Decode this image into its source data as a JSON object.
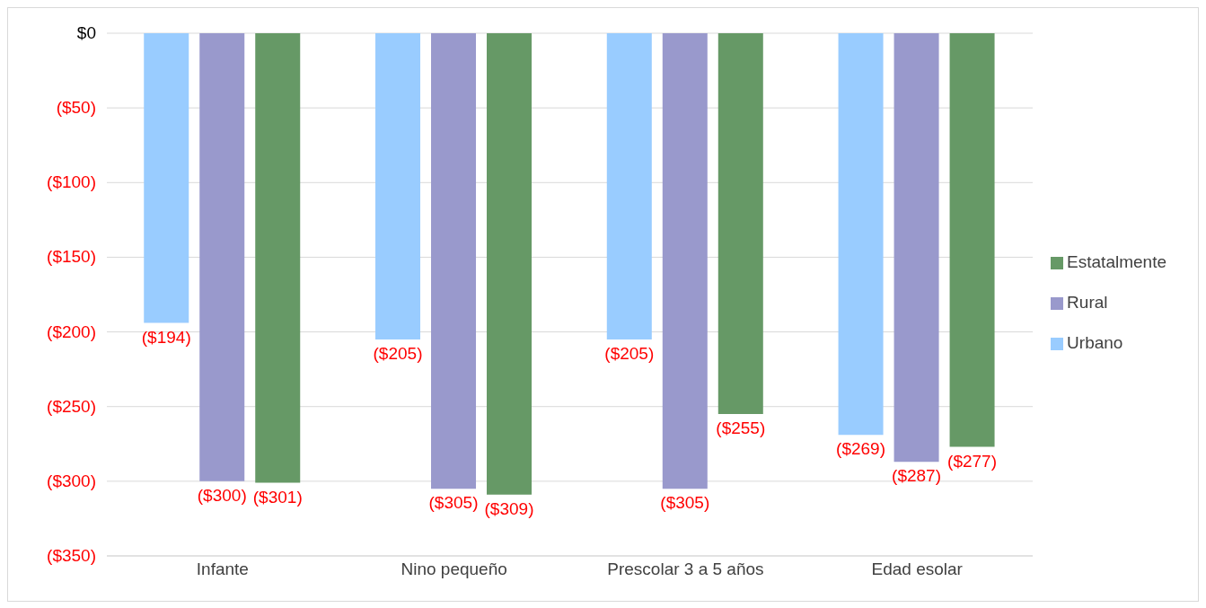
{
  "chart_data": {
    "type": "bar",
    "categories": [
      "Infante",
      "Nino pequeño",
      "Prescolar 3 a 5 años",
      "Edad esolar"
    ],
    "series": [
      {
        "name": "Urbano",
        "color": "#99ccff",
        "values": [
          -194,
          -205,
          -205,
          -269
        ],
        "value_labels": [
          "($194)",
          "($205)",
          "($205)",
          "($269)"
        ]
      },
      {
        "name": "Rural",
        "color": "#9999cc",
        "values": [
          -300,
          -305,
          -305,
          -287
        ],
        "value_labels": [
          "($300)",
          "($305)",
          "($305)",
          "($287)"
        ]
      },
      {
        "name": "Estatalmente",
        "color": "#669966",
        "values": [
          -301,
          -309,
          -255,
          -277
        ],
        "value_labels": [
          "($301)",
          "($309)",
          "($255)",
          "($277)"
        ]
      }
    ],
    "ylim": [
      -350,
      0
    ],
    "yticks": [
      {
        "value": 0,
        "label": "$0"
      },
      {
        "value": -50,
        "label": "($50)"
      },
      {
        "value": -100,
        "label": "($100)"
      },
      {
        "value": -150,
        "label": "($150)"
      },
      {
        "value": -200,
        "label": "($200)"
      },
      {
        "value": -250,
        "label": "($250)"
      },
      {
        "value": -300,
        "label": "($300)"
      },
      {
        "value": -350,
        "label": "($350)"
      }
    ],
    "grid": "y",
    "legend": "right"
  }
}
